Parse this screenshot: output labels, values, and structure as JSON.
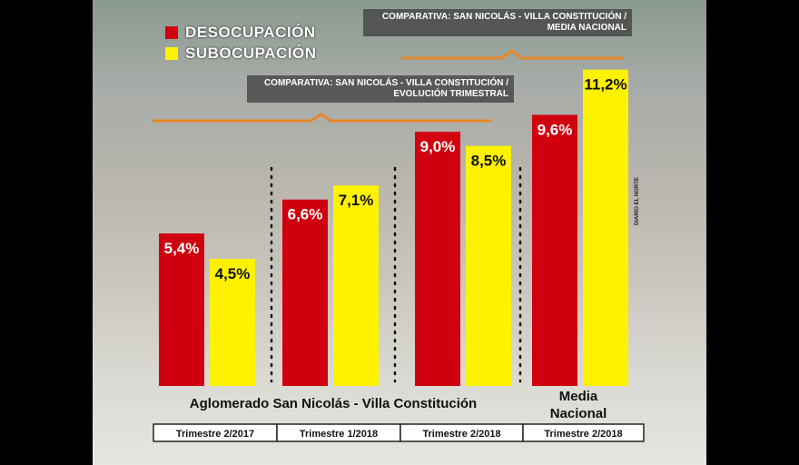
{
  "colors": {
    "desocupacion": "#d0000f",
    "subocupacion": "#fff200",
    "orange_line": "#e8872a"
  },
  "legend": {
    "desocupacion": "DESOCUPACIÓN",
    "subocupacion": "SUBOCUPACIÓN"
  },
  "banner_top": {
    "line1": "COMPARATIVA: SAN NICOLÁS - VILLA CONSTITUCIÓN /",
    "line2": "MEDIA NACIONAL"
  },
  "banner_mid": {
    "line1": "COMPARATIVA: SAN NICOLÁS - VILLA CONSTITUCIÓN /",
    "line2": "EVOLUCIÓN TRIMESTRAL"
  },
  "credit": "DIARIO EL NORTE",
  "chart_data": {
    "type": "bar",
    "categories": [
      "Trimestre 2/2017",
      "Trimestre 1/2018",
      "Trimestre 2/2018",
      "Trimestre 2/2018"
    ],
    "series": [
      {
        "name": "DESOCUPACIÓN",
        "values": [
          5.4,
          6.6,
          9.0,
          9.6
        ],
        "labels": [
          "5,4%",
          "6,6%",
          "9,0%",
          "9,6%"
        ]
      },
      {
        "name": "SUBOCUPACIÓN",
        "values": [
          4.5,
          7.1,
          8.5,
          11.2
        ],
        "labels": [
          "4,5%",
          "7,1%",
          "8,5%",
          "11,2%"
        ]
      }
    ],
    "group_labels": [
      "Aglomerado San Nicolás -  Villa Constitución",
      "Media",
      "Nacional"
    ],
    "ylim": [
      0,
      12
    ],
    "grid": false
  }
}
